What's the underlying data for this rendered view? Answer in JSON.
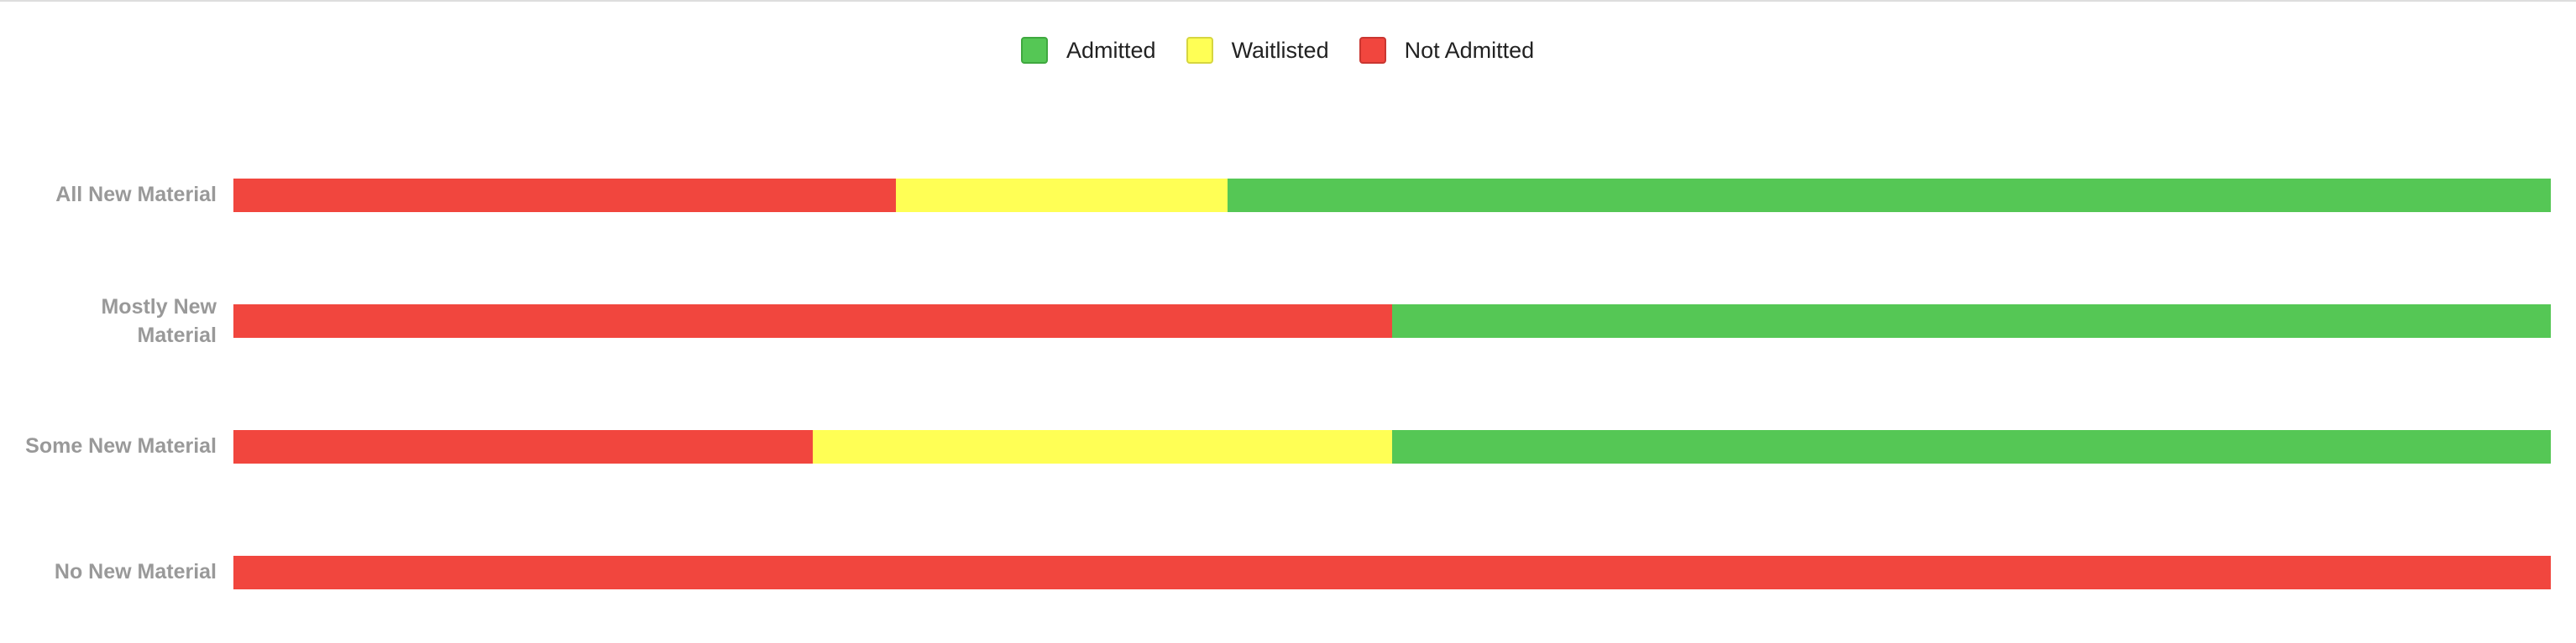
{
  "legend": [
    {
      "label": "Admitted",
      "color": "#55c755",
      "border": "#3fa83f"
    },
    {
      "label": "Waitlisted",
      "color": "#ffff55",
      "border": "#d6d640"
    },
    {
      "label": "Not Admitted",
      "color": "#f1463e",
      "border": "#c93631"
    }
  ],
  "chart_data": {
    "type": "bar",
    "orientation": "horizontal",
    "stacked": true,
    "normalized": true,
    "title": "",
    "xlabel": "",
    "ylabel": "",
    "xlim": [
      0,
      100
    ],
    "grid": false,
    "legend_position": "top",
    "categories": [
      "All New Material",
      "Mostly New Material",
      "Some New Material",
      "No New Material"
    ],
    "series": [
      {
        "name": "Not Admitted",
        "color": "#f1463e",
        "values": [
          28.6,
          50,
          25,
          100
        ]
      },
      {
        "name": "Waitlisted",
        "color": "#ffff55",
        "values": [
          14.3,
          0,
          25,
          0
        ]
      },
      {
        "name": "Admitted",
        "color": "#55c755",
        "values": [
          57.1,
          50,
          50,
          0
        ]
      }
    ]
  },
  "rows": [
    {
      "label": "All New Material",
      "not_admitted": 28.6,
      "waitlisted": 14.3,
      "admitted": 57.1
    },
    {
      "label": "Mostly New Material",
      "not_admitted": 50,
      "waitlisted": 0,
      "admitted": 50
    },
    {
      "label": "Some New Material",
      "not_admitted": 25,
      "waitlisted": 25,
      "admitted": 50
    },
    {
      "label": "No New Material",
      "not_admitted": 100,
      "waitlisted": 0,
      "admitted": 0
    }
  ]
}
